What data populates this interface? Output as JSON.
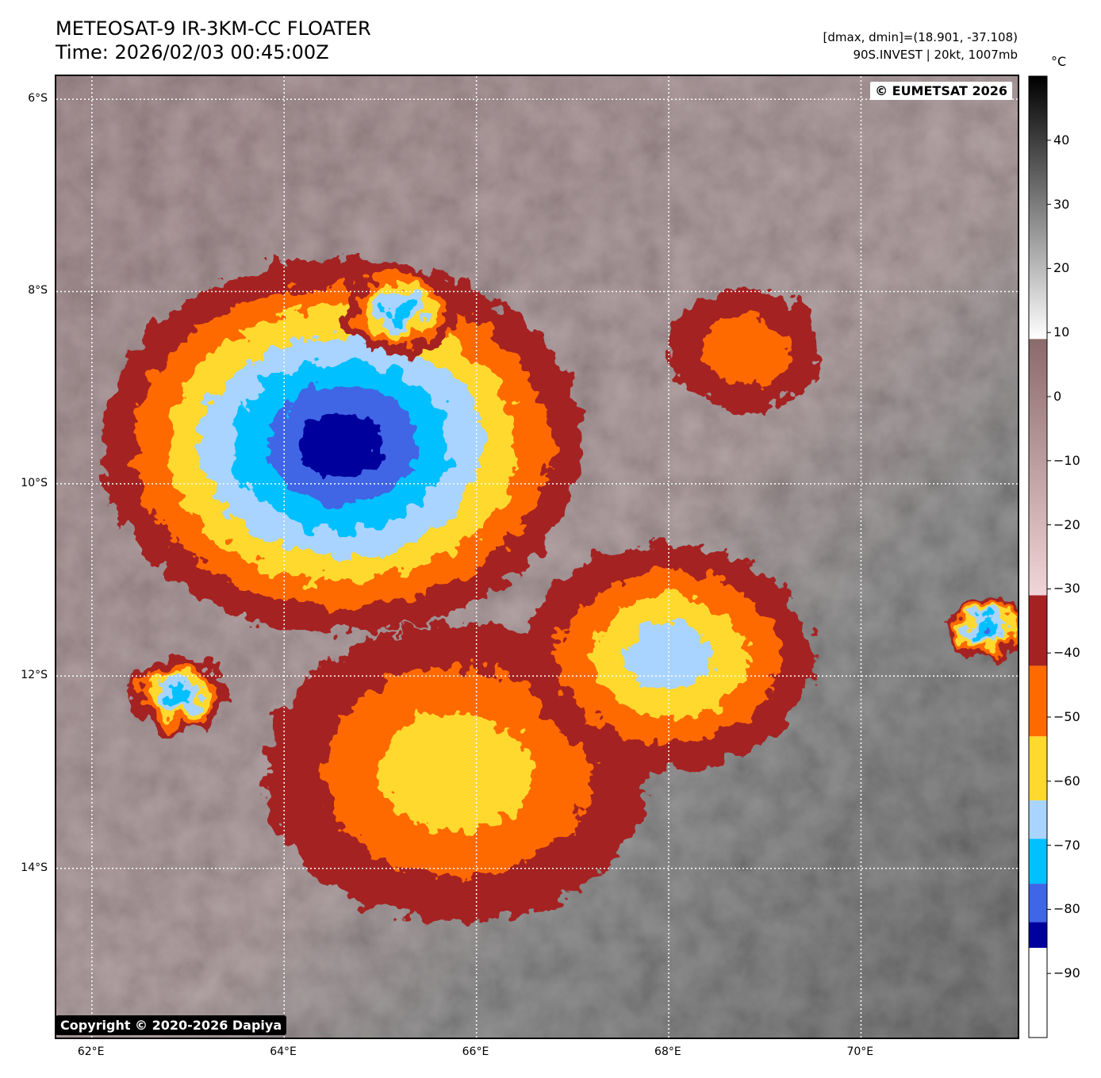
{
  "title": {
    "line1": "METEOSAT-9 IR-3KM-CC FLOATER",
    "line2": "Time: 2026/02/03 00:45:00Z"
  },
  "info": {
    "line1": "[dmax, dmin]=(18.901, -37.108)",
    "line2": "90S.INVEST | 20kt, 1007mb"
  },
  "watermarks": {
    "eumetsat": "© EUMETSAT 2026",
    "copyright": "Copyright © 2020-2026 Dapiya"
  },
  "map": {
    "lat_labels": [
      {
        "text": "6°S",
        "value": -6
      },
      {
        "text": "8°S",
        "value": -8
      },
      {
        "text": "10°S",
        "value": -10
      },
      {
        "text": "12°S",
        "value": -12
      },
      {
        "text": "14°S",
        "value": -14
      }
    ],
    "lon_labels": [
      {
        "text": "62°E",
        "value": 62
      },
      {
        "text": "64°E",
        "value": 64
      },
      {
        "text": "66°E",
        "value": 66
      },
      {
        "text": "68°E",
        "value": 68
      },
      {
        "text": "70°E",
        "value": 70
      }
    ],
    "extent": {
      "lon_min": 61.63,
      "lon_max": 71.63,
      "lat_max": -5.76,
      "lat_min": -15.76
    },
    "grid": "dotted white"
  },
  "colorbar": {
    "unit": "°C",
    "ticks": [
      40,
      30,
      20,
      10,
      0,
      -10,
      -20,
      -30,
      -40,
      -50,
      -60,
      -70,
      -80,
      -90
    ],
    "tick_labels": [
      "40",
      "30",
      "20",
      "10",
      "0",
      "−10",
      "−20",
      "−30",
      "−40",
      "−50",
      "−60",
      "−70",
      "−80",
      "−90"
    ],
    "range": [
      -100,
      50
    ],
    "bands": [
      {
        "from": -100,
        "to": -86,
        "color": "#ffffff"
      },
      {
        "from": -86,
        "to": -82,
        "color": "#00009c"
      },
      {
        "from": -82,
        "to": -76,
        "color": "#3f66e6"
      },
      {
        "from": -76,
        "to": -69,
        "color": "#00c0ff"
      },
      {
        "from": -69,
        "to": -63,
        "color": "#a8d4ff"
      },
      {
        "from": -63,
        "to": -53,
        "color": "#ffd92e"
      },
      {
        "from": -53,
        "to": -42,
        "color": "#ff6a00"
      },
      {
        "from": -42,
        "to": -31,
        "color": "#a52222"
      },
      {
        "from": -31,
        "to": 9,
        "gradient": [
          "#f2d5d8",
          "#8a6a6a"
        ]
      },
      {
        "from": 9,
        "to": 50,
        "gradient": [
          "#ffffff",
          "#000000"
        ]
      }
    ]
  },
  "colors": {
    "deep_blue": "#00009c",
    "blue": "#3f66e6",
    "cyan": "#00c0ff",
    "light_blue": "#a8d4ff",
    "yellow": "#ffd92e",
    "orange": "#ff6a00",
    "dark_red": "#a52222",
    "rose": "#9c7a7a",
    "gray": "#8a8a8a"
  },
  "features": [
    {
      "name": "central-convective-cluster",
      "lon": 64.6,
      "lat": -9.6,
      "r_deg": 2.5,
      "peak": "deep_blue"
    },
    {
      "name": "north-cell",
      "lon": 65.2,
      "lat": -8.2,
      "r_deg": 0.6,
      "peak": "cyan"
    },
    {
      "name": "northeast-cell",
      "lon": 68.8,
      "lat": -8.6,
      "r_deg": 0.8,
      "peak": "orange"
    },
    {
      "name": "southern-band",
      "lon": 65.8,
      "lat": -13.0,
      "r_deg": 2.0,
      "peak": "yellow"
    },
    {
      "name": "southeast-band",
      "lon": 68.0,
      "lat": -11.8,
      "r_deg": 1.5,
      "peak": "light_blue"
    },
    {
      "name": "west-cell",
      "lon": 62.9,
      "lat": -12.2,
      "r_deg": 0.5,
      "peak": "cyan"
    },
    {
      "name": "far-east-cell",
      "lon": 71.3,
      "lat": -11.5,
      "r_deg": 0.4,
      "peak": "blue"
    }
  ]
}
